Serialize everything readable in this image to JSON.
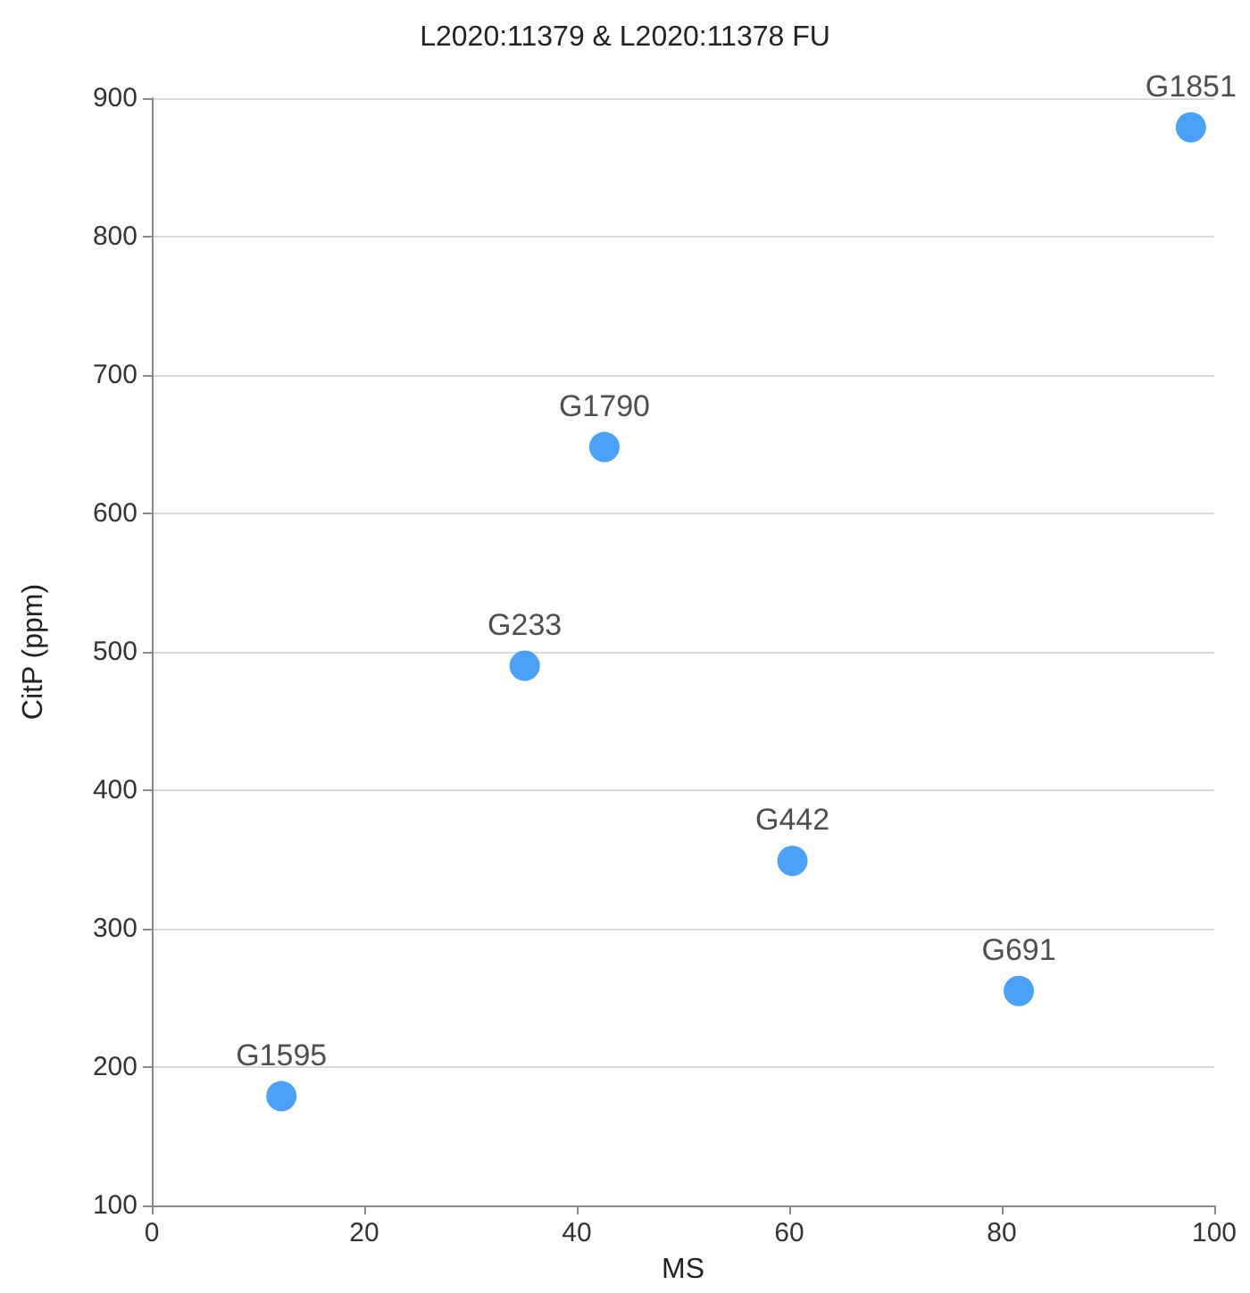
{
  "chart_data": {
    "type": "scatter",
    "title": "L2020:11379 & L2020:11378 FU",
    "xlabel": "MS",
    "ylabel": "CitP (ppm)",
    "x": [
      12.2,
      35.1,
      42.6,
      60.3,
      81.6,
      97.8
    ],
    "series": [
      {
        "color": "#1e88f5",
        "values": [
          179,
          490,
          648,
          349,
          255,
          879
        ],
        "value_labels": [
          "G1595",
          "G233",
          "G1790",
          "G442",
          "G691",
          "G1851"
        ]
      }
    ],
    "xlim": [
      0,
      100
    ],
    "xticks": [
      0,
      20,
      40,
      60,
      80,
      100
    ],
    "ylim": [
      100,
      900
    ],
    "yticks": [
      100,
      200,
      300,
      400,
      500,
      600,
      700,
      800,
      900
    ],
    "grid": "y",
    "marker": "circle"
  }
}
